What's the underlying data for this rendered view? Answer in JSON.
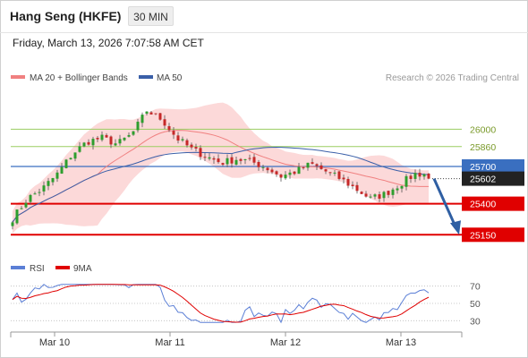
{
  "header": {
    "instrument": "Hang Seng (HKFE)",
    "timeframe": "30 MIN"
  },
  "timestamp": "Friday, March 13, 2026 7:07:58 AM CET",
  "legend": {
    "ma20": "MA 20 + Bollinger Bands",
    "ma50": "MA 50"
  },
  "copyright": "Research © 2026 Trading Central",
  "rsi_legend": {
    "rsi": "RSI",
    "ma": "9MA"
  },
  "colors": {
    "candle_up": "#2e9e2e",
    "candle_down": "#c62828",
    "ma20": "#f08080",
    "ma50": "#3a5fa8",
    "bollinger_fill": "#fcd9d9",
    "pivot": "#3a6fc0",
    "support": "#e00000",
    "resistance": "#9acd60",
    "arrow": "#2f5fa3",
    "rsi": "#5b7fd6",
    "rsi_ma": "#e00000"
  },
  "chart_data": [
    {
      "type": "candlestick",
      "x": [
        "Mar 10",
        "Mar 11",
        "Mar 12",
        "Mar 13"
      ],
      "ylim": [
        25080,
        26320
      ],
      "last_price": 25602,
      "levels": [
        {
          "label": "26000",
          "value": 26000,
          "kind": "resistance"
        },
        {
          "label": "25860",
          "value": 25860,
          "kind": "resistance"
        },
        {
          "label": "25700",
          "value": 25700,
          "kind": "pivot"
        },
        {
          "label": "25400",
          "value": 25400,
          "kind": "support"
        },
        {
          "label": "25150",
          "value": 25150,
          "kind": "support"
        }
      ],
      "series": [
        {
          "name": "MA 20 + Bollinger Bands"
        },
        {
          "name": "MA 50"
        }
      ],
      "forecast": {
        "from": 25602,
        "to": 25150
      }
    },
    {
      "type": "line",
      "ticks": [
        "70",
        "50",
        "30"
      ],
      "ylim": [
        20,
        80
      ],
      "series": [
        {
          "name": "RSI"
        },
        {
          "name": "9MA"
        }
      ]
    }
  ]
}
